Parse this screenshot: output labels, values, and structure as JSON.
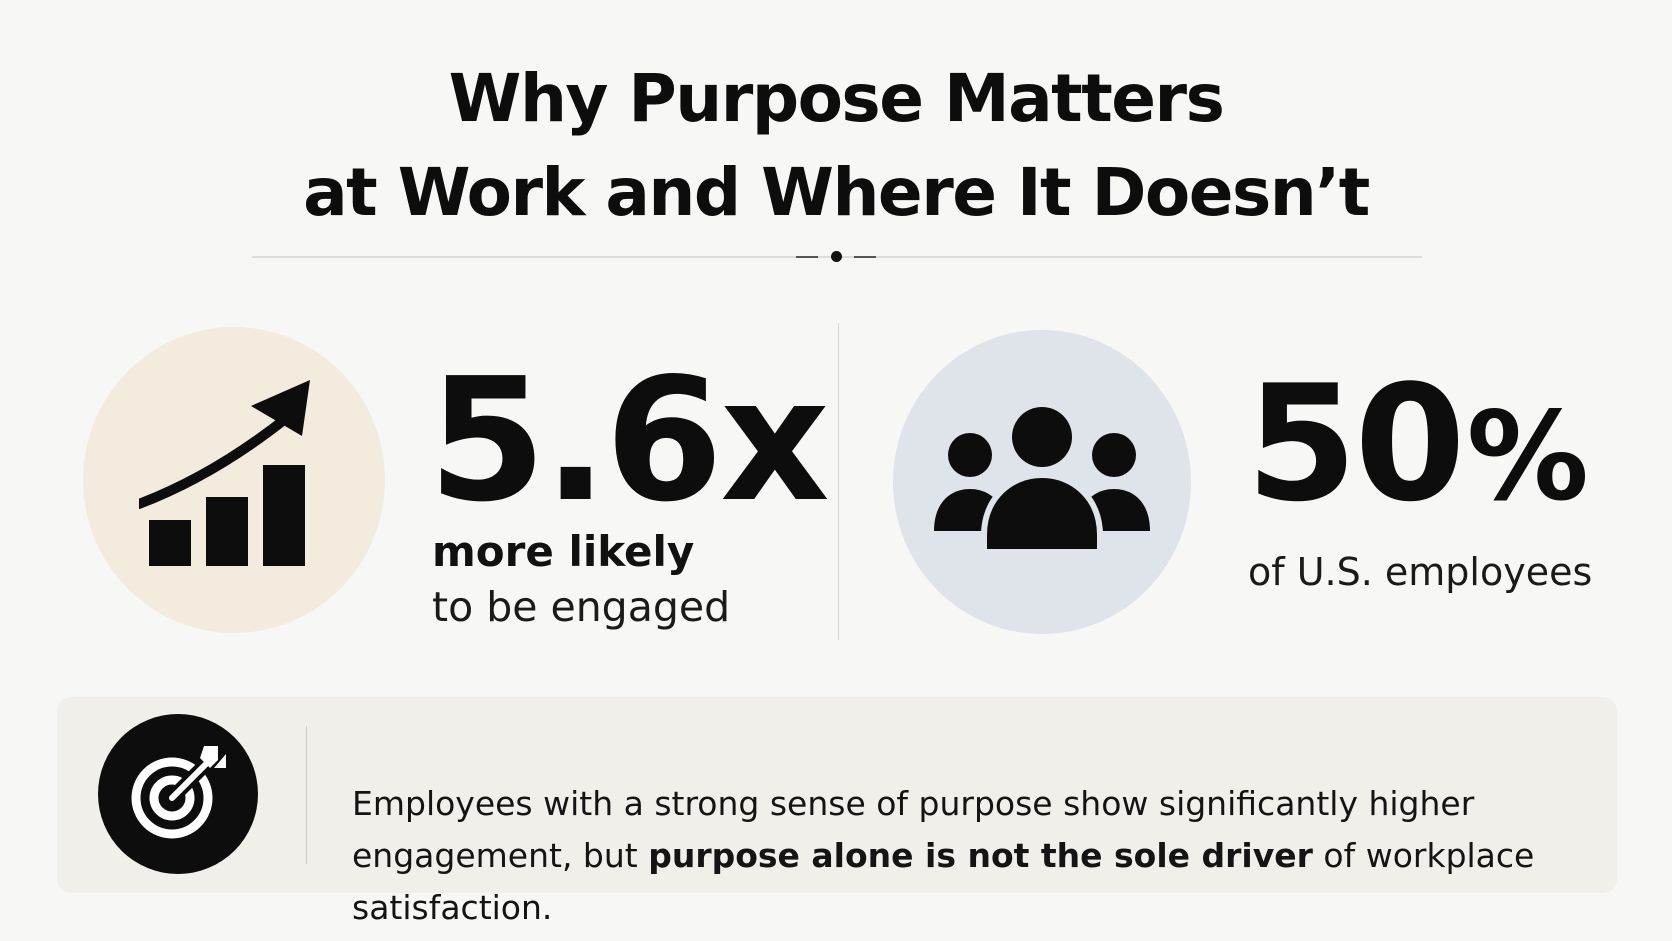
{
  "title": {
    "line1": "Why Purpose Matters",
    "line2": "at Work and Where It Doesn’t"
  },
  "stats": [
    {
      "value": "5.6x",
      "label_strong": "more likely",
      "label": "to be engaged",
      "icon": "growth-chart-arrow-icon",
      "circle_color": "#f2ebde"
    },
    {
      "value": "50",
      "unit": "%",
      "label": "of U.S. employees",
      "icon": "people-group-icon",
      "circle_color": "#dfe3ea"
    }
  ],
  "note": {
    "icon": "target-arrow-icon",
    "text_before": "Employees with a strong sense of purpose show significantly higher engagement, but ",
    "text_strong": "purpose alone is not the sole driver",
    "text_after": " of workplace satisfaction."
  },
  "colors": {
    "background": "#f7f7f6",
    "text": "#111111",
    "card": "#f1efea"
  }
}
